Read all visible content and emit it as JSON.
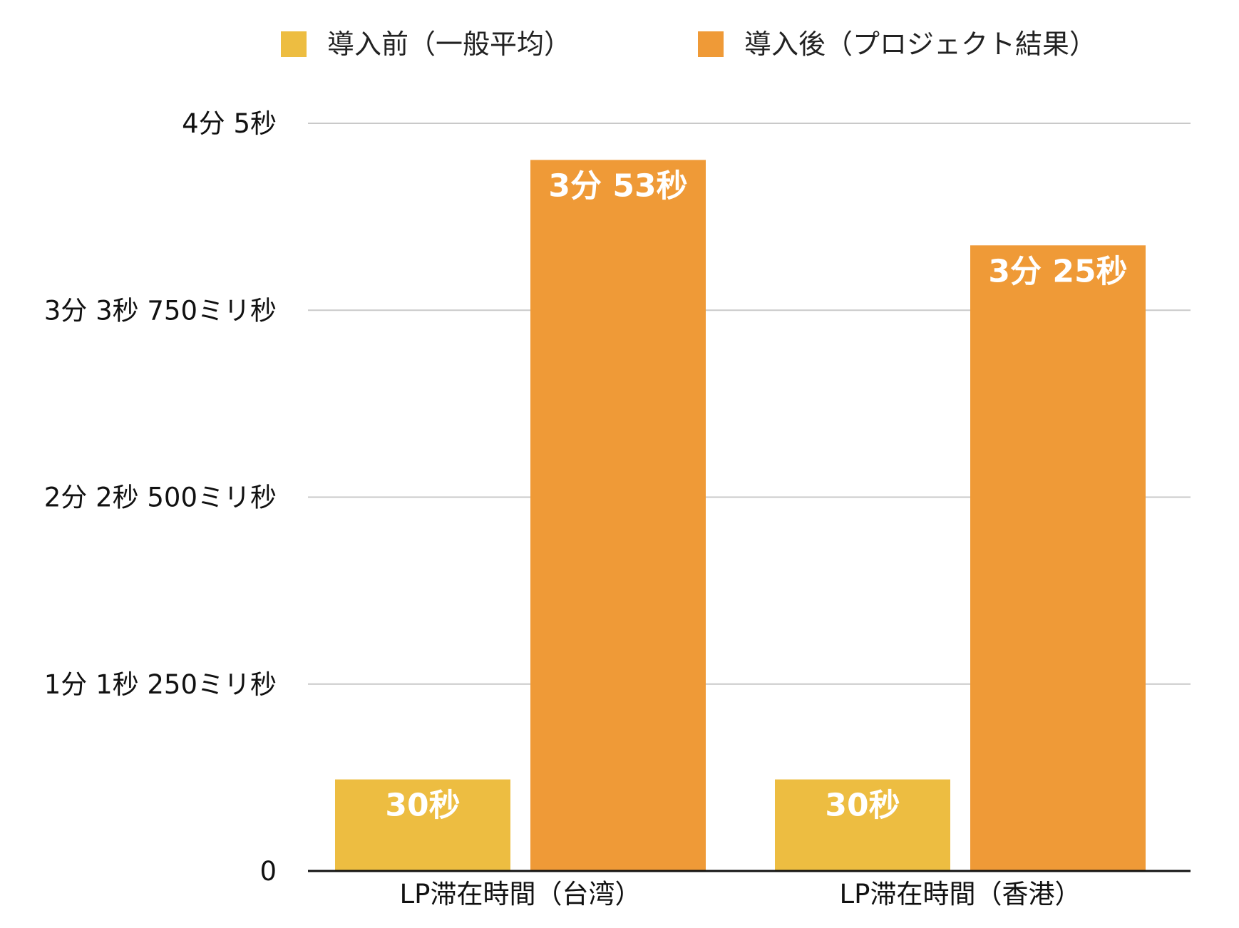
{
  "chart_data": {
    "type": "bar",
    "title": "",
    "xlabel": "",
    "ylabel": "",
    "categories": [
      "LP滞在時間（台湾）",
      "LP滞在時間（香港）"
    ],
    "series": [
      {
        "name": "導入前（一般平均）",
        "color": "#EDBD41",
        "values": [
          30,
          30
        ],
        "labels": [
          "30秒",
          "30秒"
        ]
      },
      {
        "name": "導入後（プロジェクト結果）",
        "color": "#EF9A37",
        "values": [
          233,
          205
        ],
        "labels": [
          "3分 53秒",
          "3分 25秒"
        ]
      }
    ],
    "ylim": [
      0,
      245
    ],
    "yticks": [
      {
        "value": 0,
        "label": "0"
      },
      {
        "value": 61.25,
        "label": "1分 1秒 250ミリ秒"
      },
      {
        "value": 122.5,
        "label": "2分 2秒 500ミリ秒"
      },
      {
        "value": 183.75,
        "label": "3分 3秒 750ミリ秒"
      },
      {
        "value": 245,
        "label": "4分 5秒"
      }
    ],
    "grid": true,
    "legend_position": "top"
  }
}
